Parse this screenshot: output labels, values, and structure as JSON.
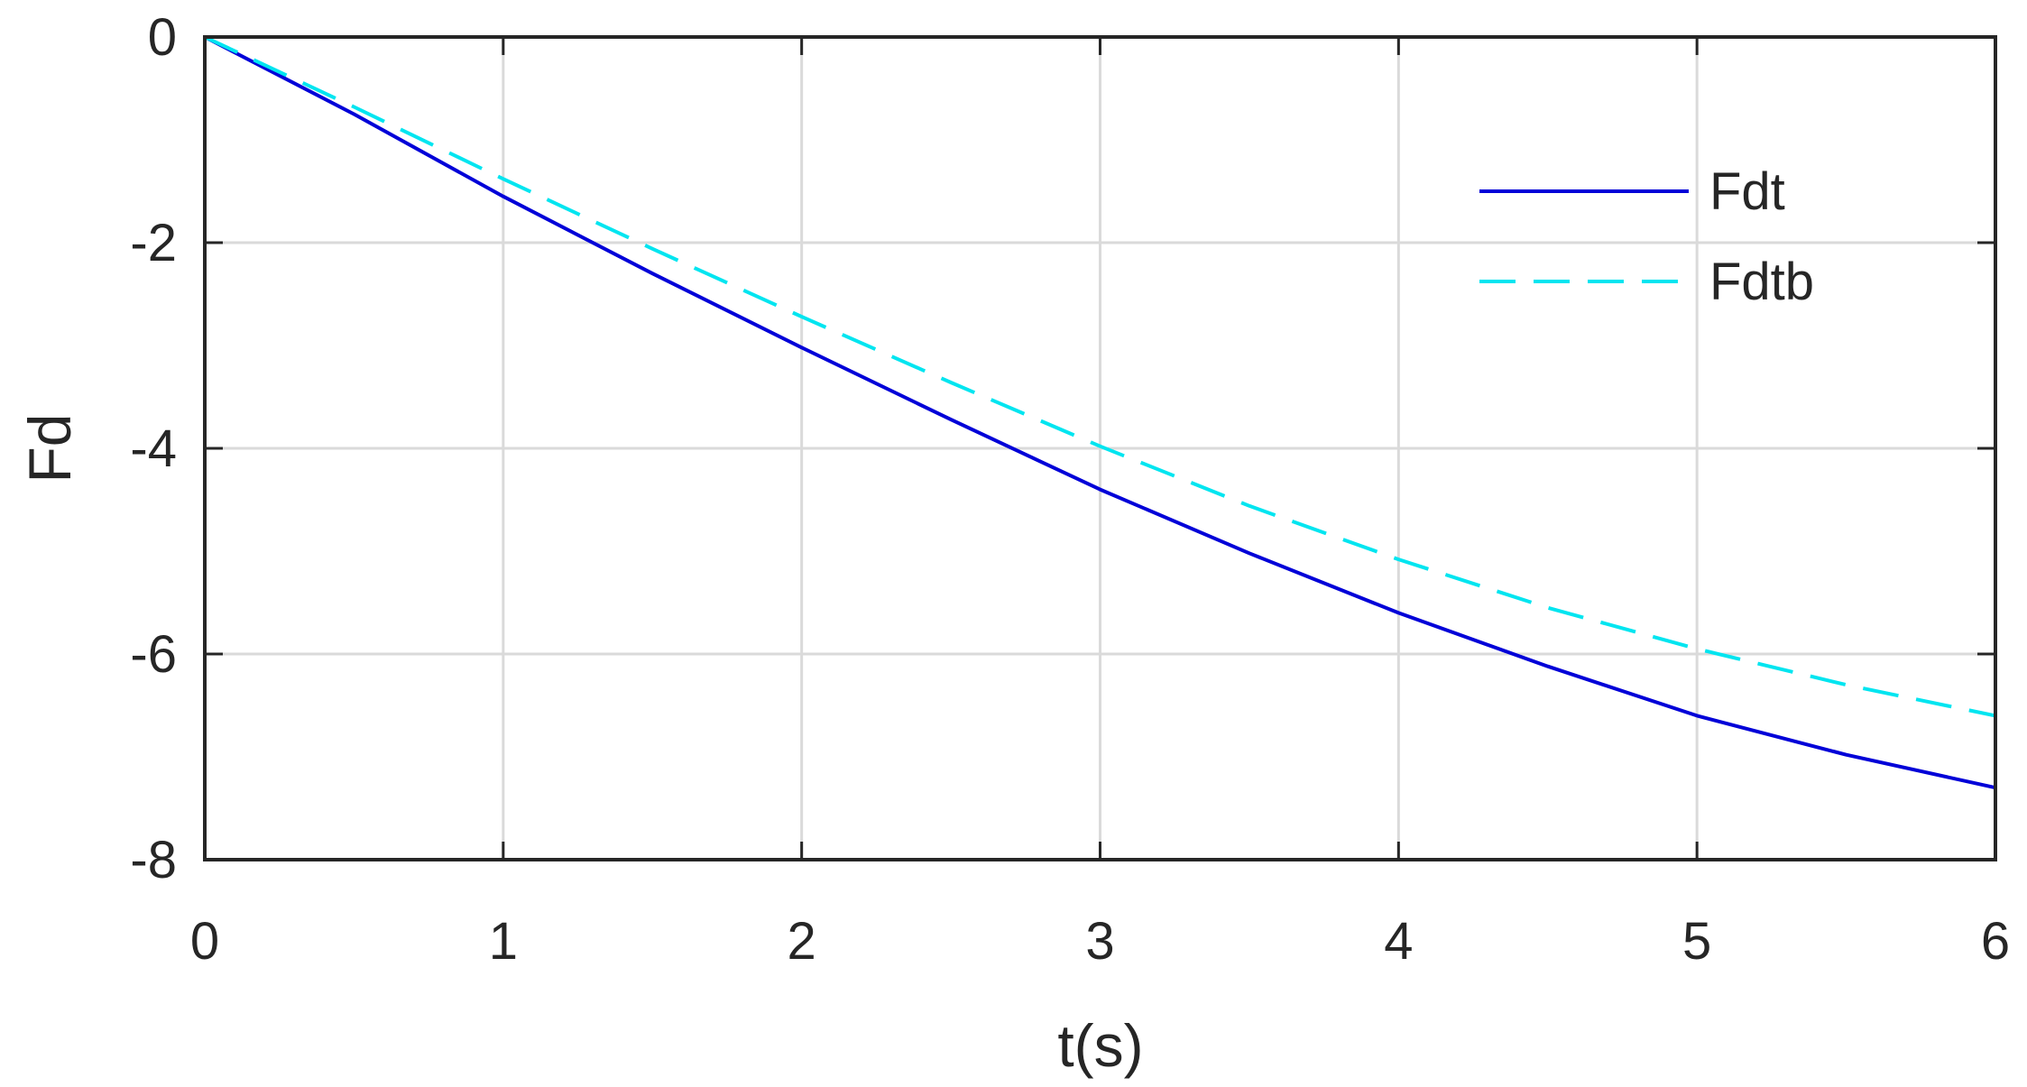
{
  "chart_data": {
    "type": "line",
    "title": "",
    "xlabel": "t(s)",
    "ylabel": "Fd",
    "xlim": [
      0,
      6
    ],
    "ylim": [
      -8,
      0
    ],
    "xticks": [
      0,
      1,
      2,
      3,
      4,
      5,
      6
    ],
    "yticks": [
      0,
      -2,
      -4,
      -6,
      -8
    ],
    "x_tick_labels": [
      "0",
      "1",
      "2",
      "3",
      "4",
      "5",
      "6"
    ],
    "y_tick_labels": [
      "0",
      "-2",
      "-4",
      "-6",
      "-8"
    ],
    "grid": true,
    "legend_position": "top-right",
    "series": [
      {
        "name": "Fdt",
        "color": "#0000d8",
        "line_style": "solid",
        "x": [
          0,
          0.5,
          1,
          1.5,
          2,
          2.5,
          3,
          3.5,
          4,
          4.5,
          5,
          5.5,
          6
        ],
        "y": [
          0,
          -0.75,
          -1.55,
          -2.3,
          -3.02,
          -3.72,
          -4.4,
          -5.02,
          -5.6,
          -6.12,
          -6.6,
          -6.98,
          -7.3
        ]
      },
      {
        "name": "Fdtb",
        "color": "#00e5f0",
        "line_style": "dashed",
        "x": [
          0,
          0.5,
          1,
          1.5,
          2,
          2.5,
          3,
          3.5,
          4,
          4.5,
          5,
          5.5,
          6
        ],
        "y": [
          0,
          -0.68,
          -1.38,
          -2.06,
          -2.72,
          -3.36,
          -3.98,
          -4.56,
          -5.08,
          -5.55,
          -5.95,
          -6.3,
          -6.6
        ]
      }
    ]
  }
}
